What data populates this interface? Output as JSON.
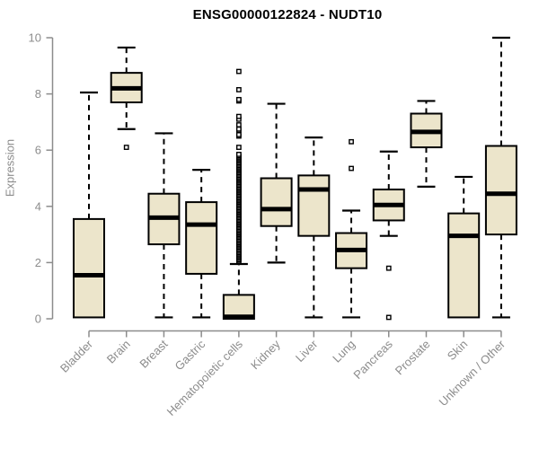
{
  "page": {
    "background": "#FFFFFF"
  },
  "chart_data": {
    "type": "boxplot",
    "title": "ENSG00000122824 - NUDT10",
    "ylabel": "Expression",
    "xlabel": "",
    "ylim": [
      0,
      10
    ],
    "yticks": [
      0,
      2,
      4,
      6,
      8,
      10
    ],
    "grid": false,
    "legend_position": "none",
    "colors": {
      "box_fill": "#ECE5CB",
      "box_stroke": "#000000",
      "median": "#000000",
      "whisker": "#000000",
      "axis": "#8C8C8C",
      "tick_label": "#8C8C8C",
      "title": "#000000"
    },
    "series": [
      {
        "name": "Bladder",
        "low": 0.05,
        "q1": 0.05,
        "median": 1.55,
        "q3": 3.55,
        "high": 8.05,
        "outliers": []
      },
      {
        "name": "Brain",
        "low": 6.75,
        "q1": 7.7,
        "median": 8.2,
        "q3": 8.75,
        "high": 9.65,
        "outliers": [
          6.1
        ]
      },
      {
        "name": "Breast",
        "low": 0.05,
        "q1": 2.65,
        "median": 3.6,
        "q3": 4.45,
        "high": 6.6,
        "outliers": []
      },
      {
        "name": "Gastric",
        "low": 0.05,
        "q1": 1.6,
        "median": 3.35,
        "q3": 4.15,
        "high": 5.3,
        "outliers": []
      },
      {
        "name": "Hematopoietic cells",
        "low": 0.0,
        "q1": 0.0,
        "median": 0.07,
        "q3": 0.85,
        "high": 1.95,
        "outliers": [
          6.1,
          6.5,
          6.55,
          6.7,
          6.75,
          6.9,
          7.1,
          7.2,
          7.75,
          7.8,
          8.15,
          8.8
        ],
        "outlier_band": {
          "from": 2.05,
          "to": 5.85,
          "step": 0.05
        }
      },
      {
        "name": "Kidney",
        "low": 2.0,
        "q1": 3.3,
        "median": 3.9,
        "q3": 5.0,
        "high": 7.65,
        "outliers": []
      },
      {
        "name": "Liver",
        "low": 0.05,
        "q1": 2.95,
        "median": 4.6,
        "q3": 5.1,
        "high": 6.45,
        "outliers": []
      },
      {
        "name": "Lung",
        "low": 0.05,
        "q1": 1.8,
        "median": 2.45,
        "q3": 3.05,
        "high": 3.85,
        "outliers": [
          5.35,
          6.3
        ]
      },
      {
        "name": "Pancreas",
        "low": 2.95,
        "q1": 3.5,
        "median": 4.05,
        "q3": 4.6,
        "high": 5.95,
        "outliers": [
          1.8,
          0.05
        ]
      },
      {
        "name": "Prostate",
        "low": 4.7,
        "q1": 6.1,
        "median": 6.65,
        "q3": 7.3,
        "high": 7.75,
        "outliers": []
      },
      {
        "name": "Skin",
        "low": 0.05,
        "q1": 0.05,
        "median": 2.95,
        "q3": 3.75,
        "high": 5.05,
        "outliers": []
      },
      {
        "name": "Unknown / Other",
        "low": 0.05,
        "q1": 3.0,
        "median": 4.45,
        "q3": 6.15,
        "high": 10.0,
        "outliers": []
      }
    ]
  }
}
